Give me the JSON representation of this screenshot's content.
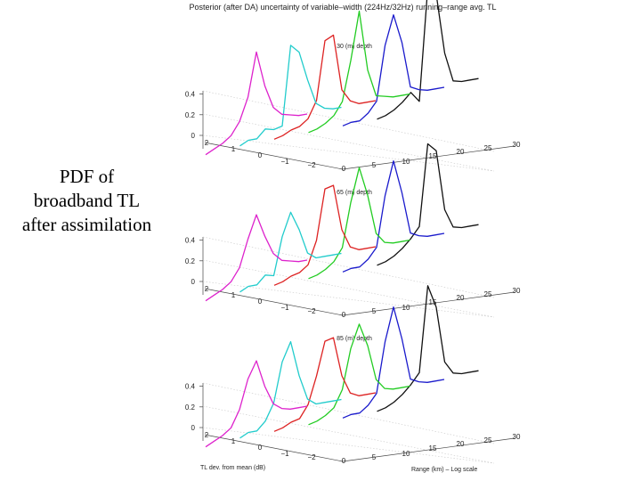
{
  "caption": "PDF of broadband TL after assimilation",
  "figure_title": "Posterior (after DA) uncertainty of variable–width (224Hz/32Hz) running–range avg. TL",
  "colors": {
    "series": [
      "#dd22cc",
      "#22cccc",
      "#dd2222",
      "#22cc22",
      "#1a1acc",
      "#111111"
    ]
  },
  "chart_data": [
    {
      "type": "line",
      "subtitle": "30 (m) depth",
      "y_ticks": [
        "0",
        "0.2",
        "0.4"
      ],
      "tl_ticks": [
        "2",
        "1",
        "0",
        "−1",
        "−2"
      ],
      "range_ticks": [
        "0",
        "5",
        "10",
        "15",
        "20",
        "25",
        "30"
      ],
      "ylim": [
        0,
        0.5
      ],
      "x": [
        3,
        2.5,
        2,
        1.5,
        1,
        0.5,
        0,
        -0.5,
        -1,
        -1.5,
        -2,
        -2.5,
        -3
      ],
      "series": [
        {
          "values": [
            0.01,
            0.02,
            0.03,
            0.05,
            0.1,
            0.2,
            0.4,
            0.22,
            0.1,
            0.05,
            0.03,
            0.01,
            0.0
          ]
        },
        {
          "values": [
            0.02,
            0.03,
            0.02,
            0.05,
            0.03,
            0.03,
            0.4,
            0.35,
            0.2,
            0.07,
            0.03,
            0.01,
            0.0
          ]
        },
        {
          "values": [
            0.02,
            0.02,
            0.03,
            0.03,
            0.05,
            0.12,
            0.39,
            0.4,
            0.12,
            0.05,
            0.02,
            0.01,
            0.0
          ]
        },
        {
          "values": [
            0.02,
            0.02,
            0.03,
            0.05,
            0.1,
            0.28,
            0.5,
            0.2,
            0.06,
            0.04,
            0.02,
            0.01,
            0.0
          ]
        },
        {
          "values": [
            0.02,
            0.02,
            0.01,
            0.03,
            0.07,
            0.32,
            0.45,
            0.3,
            0.07,
            0.04,
            0.02,
            0.01,
            0.0
          ]
        },
        {
          "values": [
            0.02,
            0.02,
            0.03,
            0.05,
            0.08,
            0.02,
            0.55,
            0.5,
            0.2,
            0.05,
            0.03,
            0.02,
            0.01
          ]
        }
      ]
    },
    {
      "type": "line",
      "subtitle": "65 (m) depth",
      "y_ticks": [
        "0",
        "0.2",
        "0.4"
      ],
      "tl_ticks": [
        "2",
        "1",
        "0",
        "−1",
        "−2"
      ],
      "range_ticks": [
        "0",
        "5",
        "10",
        "15",
        "20",
        "25",
        "30"
      ],
      "ylim": [
        0,
        0.5
      ],
      "x": [
        3,
        2.5,
        2,
        1.5,
        1,
        0.5,
        0,
        -0.5,
        -1,
        -1.5,
        -2,
        -2.5,
        -3
      ],
      "series": [
        {
          "values": [
            0.01,
            0.02,
            0.03,
            0.05,
            0.1,
            0.22,
            0.32,
            0.2,
            0.1,
            0.05,
            0.03,
            0.01,
            0.0
          ]
        },
        {
          "values": [
            0.02,
            0.03,
            0.02,
            0.05,
            0.03,
            0.2,
            0.3,
            0.2,
            0.07,
            0.03,
            0.02,
            0.01,
            0.0
          ]
        },
        {
          "values": [
            0.02,
            0.02,
            0.03,
            0.03,
            0.05,
            0.15,
            0.38,
            0.38,
            0.15,
            0.05,
            0.02,
            0.01,
            0.0
          ]
        },
        {
          "values": [
            0.02,
            0.02,
            0.03,
            0.05,
            0.1,
            0.3,
            0.45,
            0.3,
            0.1,
            0.04,
            0.02,
            0.01,
            0.0
          ]
        },
        {
          "values": [
            0.02,
            0.02,
            0.01,
            0.03,
            0.07,
            0.3,
            0.45,
            0.28,
            0.07,
            0.04,
            0.02,
            0.01,
            0.0
          ]
        },
        {
          "values": [
            0.02,
            0.02,
            0.03,
            0.05,
            0.08,
            0.12,
            0.5,
            0.45,
            0.15,
            0.05,
            0.03,
            0.02,
            0.01
          ]
        }
      ]
    },
    {
      "type": "line",
      "subtitle": "85 (m) depth",
      "y_ticks": [
        "0",
        "0.2",
        "0.4"
      ],
      "tl_ticks": [
        "2",
        "1",
        "0",
        "−1",
        "−2"
      ],
      "range_ticks": [
        "0",
        "5",
        "10",
        "15",
        "20",
        "25",
        "30"
      ],
      "ylim": [
        0,
        0.5
      ],
      "xlabel": "TL dev. from mean (dB)",
      "zlabel": "Range (km) – Log scale",
      "x": [
        3,
        2.5,
        2,
        1.5,
        1,
        0.5,
        0,
        -0.5,
        -1,
        -1.5,
        -2,
        -2.5,
        -3
      ],
      "series": [
        {
          "values": [
            0.01,
            0.02,
            0.03,
            0.05,
            0.12,
            0.25,
            0.32,
            0.18,
            0.08,
            0.04,
            0.02,
            0.01,
            0.0
          ]
        },
        {
          "values": [
            0.02,
            0.03,
            0.02,
            0.05,
            0.12,
            0.3,
            0.38,
            0.2,
            0.07,
            0.03,
            0.02,
            0.01,
            0.0
          ]
        },
        {
          "values": [
            0.02,
            0.02,
            0.03,
            0.03,
            0.08,
            0.2,
            0.35,
            0.35,
            0.15,
            0.05,
            0.02,
            0.01,
            0.0
          ]
        },
        {
          "values": [
            0.02,
            0.02,
            0.03,
            0.05,
            0.12,
            0.3,
            0.4,
            0.28,
            0.1,
            0.04,
            0.02,
            0.01,
            0.0
          ]
        },
        {
          "values": [
            0.02,
            0.02,
            0.01,
            0.03,
            0.07,
            0.3,
            0.45,
            0.28,
            0.07,
            0.04,
            0.02,
            0.01,
            0.0
          ]
        },
        {
          "values": [
            0.02,
            0.02,
            0.03,
            0.05,
            0.08,
            0.12,
            0.52,
            0.4,
            0.12,
            0.05,
            0.03,
            0.02,
            0.01
          ]
        }
      ]
    }
  ]
}
